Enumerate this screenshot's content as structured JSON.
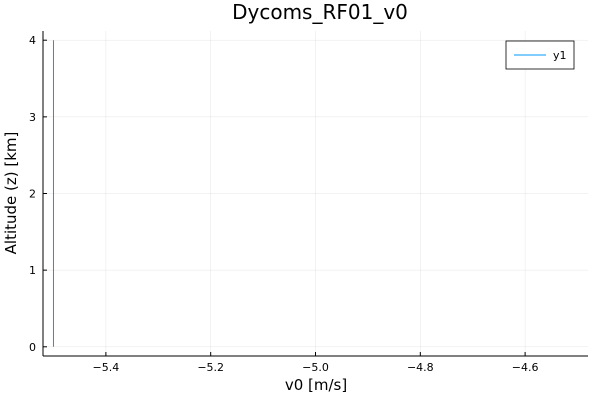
{
  "chart_data": {
    "type": "line",
    "title": "Dycoms_RF01_v0",
    "xlabel": "v0 [m/s]",
    "ylabel": "Altitude (z) [km]",
    "xlim": [
      -5.52,
      -4.48
    ],
    "ylim": [
      -0.12,
      4.12
    ],
    "xticks": [
      -5.4,
      -5.2,
      -5.0,
      -4.8,
      -4.6
    ],
    "xtick_labels": [
      "−5.4",
      "−5.2",
      "−5.0",
      "−4.8",
      "−4.6"
    ],
    "yticks": [
      0,
      1,
      2,
      3,
      4
    ],
    "ytick_labels": [
      "0",
      "1",
      "2",
      "3",
      "4"
    ],
    "grid": true,
    "legend_position": "top-right",
    "series": [
      {
        "name": "y1",
        "color": "#009AFA",
        "x": [
          -5.5,
          -5.5
        ],
        "y": [
          0,
          4
        ]
      }
    ]
  }
}
